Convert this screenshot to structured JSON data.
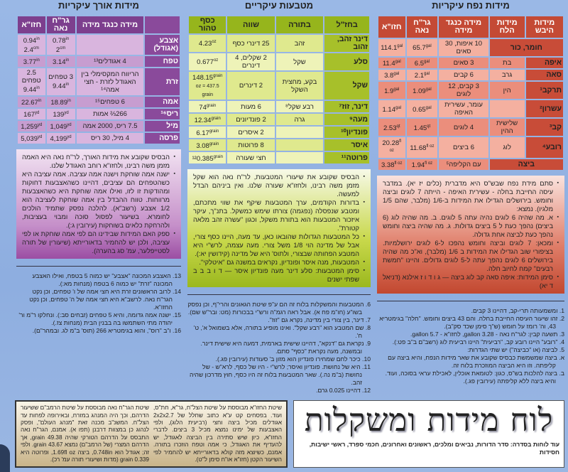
{
  "volume": {
    "title": "מידות נפח עיקריות",
    "headers": [
      "מידות היבש",
      "מידות הלח",
      "מידה כנגד מידה",
      "גר\"ח נאה",
      "חזו\"א"
    ],
    "rows": [
      [
        {
          "v": "חומר, כור",
          "span": 2
        },
        {
          "v": "10 איפות, 30 סאים"
        },
        {
          "v": "65.7",
          "u": "gal"
        },
        {
          "v": "114.1",
          "u": "gal"
        }
      ],
      [
        {
          "v": "איפה"
        },
        {
          "v": "בת"
        },
        {
          "v": "3 סאים"
        },
        {
          "v": "6.5",
          "u": "gal"
        },
        {
          "v": "11.4",
          "u": "gal"
        }
      ],
      [
        {
          "v": "סאה"
        },
        {
          "v": "גרב"
        },
        {
          "v": "6 קבים"
        },
        {
          "v": "2.1",
          "u": "gal"
        },
        {
          "v": "3.8",
          "u": "gal"
        }
      ],
      [
        {
          "v": "תרקב¹"
        },
        {
          "v": "הין"
        },
        {
          "v": "3 קבים, 12 לוגים"
        },
        {
          "v": "1.09",
          "u": "gal"
        },
        {
          "v": "1.9",
          "u": "gal"
        }
      ],
      [
        {
          "v": "עשרון²"
        },
        {
          "v": ""
        },
        {
          "v": "עומר, עשירית האיפה"
        },
        {
          "v": "0.65",
          "u": "gal"
        },
        {
          "v": "1.14",
          "u": "gal"
        }
      ],
      [
        {
          "v": "קב³"
        },
        {
          "v": "שלישית ההין"
        },
        {
          "v": "4 לוגים"
        },
        {
          "v": "1.45",
          "u": "qt"
        },
        {
          "v": "2.53",
          "u": "qt"
        }
      ],
      [
        {
          "v": "רובע⁴"
        },
        {
          "v": "לוג"
        },
        {
          "v": "6 ביצים"
        },
        {
          "v": "11.68",
          "u": "fl oz"
        },
        {
          "v": "20.28",
          "u": "fl oz"
        }
      ],
      [
        {
          "v": "ביצה",
          "span": 2
        },
        {
          "v": "עם הקליפה⁵"
        },
        {
          "v": "1.94",
          "u": "fl oz"
        },
        {
          "v": "3.38",
          "u": "fl oz"
        }
      ]
    ],
    "notes": [
      "סתם מידת נפח שבש\"ס היא מדברית (כלים יז יא). במדבר עיסה החייבת בחלה - עשירית האיפה - הייתה 7 לוגים וביצה וחומש. בירושלים הגדילו את המידות ב-1/6 (מלבר, שהם 1/5 מלגיו). נמצא:",
      "א. מה שהיה 6 לוגים נהיה עתה 5 לוגים. ב. מה שהיה לוג (6 ביצים) נהפך כעת ל 5 ביצים גדולות. ג. מה שהיה ביצה וחומש נהפך כעת לביצה אחת גדולה.",
      "ומכאן: 7 לוגים וביצה וחומש נהפכו ל-6 לוגים ירושלמיות. בציפורי שוב הגדילו את המידות ב 1/6 (מלבר), וא\"כ מה שהיה בירושלים 6 לוגים נהפך עתה ל-5 לוגים גדולים. והיינו \"חמשת רבעים\" קמח לחיוב חלה.",
      "סימן המידות: איפה סאה קב לוג ביצה — ג ו ד ו ז  אילנא (דניאל ד יא)"
    ]
  },
  "coins": {
    "title": "מטבעות עיקריים",
    "headers": [
      "בחז\"ל",
      "בתורה",
      "שווה",
      "כסף טהור"
    ],
    "rows": [
      [
        {
          "v": "דינר זהב, זהוב"
        },
        {
          "v": "זהב"
        },
        {
          "v": "25 דינרי כסף"
        },
        {
          "v": "4.23",
          "u": "oz"
        }
      ],
      [
        {
          "v": "סלע"
        },
        {
          "v": "שקל"
        },
        {
          "v": "2 שקלים, 4 דינרים"
        },
        {
          "v": "0.677",
          "u": "oz"
        }
      ],
      [
        {
          "v": "שקל"
        },
        {
          "v": "בקע, מחצית השקל"
        },
        {
          "v": "2 דינרים"
        },
        {
          "v": "148.15",
          "u": "grain",
          "v2": "oz = 437.5 grain"
        }
      ],
      [
        {
          "v": "דינר, זוז⁷"
        },
        {
          "v": "רבע שקל⁸"
        },
        {
          "v": "6 מעות"
        },
        {
          "v": "74",
          "u": "grain"
        }
      ],
      [
        {
          "v": "מעה⁹"
        },
        {
          "v": "גרה"
        },
        {
          "v": "2 פונדיונים"
        },
        {
          "v": "12.34",
          "u": "grain"
        }
      ],
      [
        {
          "v": "פונדיון¹⁰"
        },
        {
          "v": ""
        },
        {
          "v": "2 איסרים"
        },
        {
          "v": "6.17",
          "u": "grain"
        }
      ],
      [
        {
          "v": "איסר"
        },
        {
          "v": ""
        },
        {
          "v": "8 פרוטות"
        },
        {
          "v": "3.08",
          "u": "grain"
        }
      ],
      [
        {
          "v": "פרוטה¹¹"
        },
        {
          "v": ""
        },
        {
          "v": "חצי שעורה"
        },
        {
          "v": "¹²0.385",
          "u": "grain"
        }
      ]
    ],
    "notes": [
      "הבסיס שקובע את שיעורי המטבעות, לר\"ח נאה הוא שקל מזמן משה רבינו, ולחזו\"א שעורה שלנו. ואין ביניהם הבדל למעשה.",
      "בדורות הקודמים, ערך המטבעות שיקף את שווי מתכתם, ומטבע שנפסלה (נפגמה) צורתו שימש כמשקל. בתנ\"ך, עיקר איזכור המטבעות הוא בתורת משקל, וכגון \"עשרה זהב מלאה קטורת\".",
      "כל המטבעות הגדולות שהובאו כאן, עד מעה, היינו כסף צורי, אבל של מדינה הוי 1/8 משל צורי. מעה עצמה, לרש\"י היא המטבע הפחותה שבצורי, ולתוס' היא של מדינה (קידושין יא:).",
      "המטבעות, מנה איסר ופונדיון, נקראים במשנה גם \"איטלקי\".",
      "סימן המטבעות: סלע דינר מעה פונדיון איסר — ד ו ב ב ב  שפתי ישנים"
    ]
  },
  "length": {
    "title": "מידות אורך עיקריות",
    "headers": [
      "",
      "מידה כנגד מידה",
      "גר\"ח נאה",
      "חזו\"א"
    ],
    "rows": [
      [
        {
          "v": "אצבע (אגודל)"
        },
        {
          "v": ""
        },
        {
          "v": "0.78",
          "u": "in",
          "v2": "2",
          "u2": "cm"
        },
        {
          "v": "0.94",
          "u": "in",
          "v2": "2.4",
          "u2": "cm"
        }
      ],
      [
        {
          "v": "טפח"
        },
        {
          "v": "4 אגודלים¹³"
        },
        {
          "v": "3.14",
          "u": "in"
        },
        {
          "v": "3.77",
          "u": "in"
        }
      ],
      [
        {
          "v": "זרת"
        },
        {
          "v": "הריווח המקסימלי בין האגודל לזרת - חצי אמה¹⁴"
        },
        {
          "v": "3 טפחים",
          "v2": "9.44",
          "u2": "in"
        },
        {
          "v": "2.5 טפחים",
          "v2": "9.44",
          "u2": "in"
        }
      ],
      [
        {
          "v": "אמה"
        },
        {
          "v": "6 טפחים¹⁵"
        },
        {
          "v": "18.89",
          "u": "in"
        },
        {
          "v": "22.67",
          "u": "in"
        }
      ],
      [
        {
          "v": "ריס¹⁶"
        },
        {
          "v": "266⅔ אמות"
        },
        {
          "v": "139",
          "u": "yd"
        },
        {
          "v": "167",
          "u": "yd"
        }
      ],
      [
        {
          "v": "מיל"
        },
        {
          "v": "7.5 ריס, 2000 אמה"
        },
        {
          "v": "1,049",
          "u": "yd"
        },
        {
          "v": "1,259",
          "u": "yd"
        }
      ],
      [
        {
          "v": "פרסה"
        },
        {
          "v": "4 מיל, 30 ריס"
        },
        {
          "v": "4,199",
          "u": "yd"
        },
        {
          "v": "5,039",
          "u": "yd"
        }
      ]
    ],
    "notes": [
      "הבסיס שקובע את מידות האורך, לר\"ח נאה היא האמה מזמן משה רבינו, ולחזו\"א רוחב האגודל שלנו.",
      "ישנה אמה שוחקת וישנה אמה עציבה. אמה עציבה היא כשהטפחים הם עציבים, דהיינו כשהאצבעות דחוקות ומהודקות זו לזו, ואילו אמה שוחקת היא כשהאצבעות מרווחות. טווח ההבדל בין אמה שוחקת לעציבה הוא 1/2 אצבע (רשב\"א). להלכה נפסק שתמיד הולכים לחומרא. בשיעור לפסול סוכה ומבוי בעציבות, ולהרחקת כלאים בשוחקות (עירובין ג:).",
      "ספק האם המידות שבידינו הם לפי אמה שוחקת או לפי עציבה, ולכן יש להחמיר בדאורייתא (שיעורין של תורה לסטייפלער, עמ' סג בהערה)."
    ]
  },
  "footnotes_volume": [
    "1. ומשמעותה תרי-קב, דהיינו 3 קבים.",
    "2. זהו שיעור העיסה החייבת בחלה. והם 43 ביצים וחומש. \"חלה\" בגימטריא 43, וה' רומז על חומש (ש\"ך סימן שכד סק\"ב).",
    "3. תשעה קבין: לגר\"ח נאה - gallon 3.28, לחזו\"א - gallon 5.7.",
    "4. \"רובע\" היינו רובע קב, \"רביעית\" היינו רביעית לוג (רשב\"ם ב\"ב פט:).",
    "5. לביצה (או \"כביצה\") יש שתי הגדרות:",
    "א. ביצה שמשמשת כבסיס שקובע את שאר מידות הנפח, והיא ביצה עם קליפתה. וזו היא הביצה המוזכרת בלוח זה.",
    "ב. ביצה להלכות בש\"ס, כגון: לטומאת אוכלין, לאכילת עראי בסוכה, ועוד. והיא ביצה ללא קליפתה (עירובין פג.)."
  ],
  "footnotes_coins": [
    "6. המטבעות והמשקלות בלוח זה הם ע\"פ שיטת הגאונים והרי\"ף, וכן נפסק בשו\"ע (חו\"מ פח א). אבל ראה רגמ\"ה ורש\"י בבכורות (מט: ובר\"ש שם).",
    "7. דינר, בין צורי בין מדינה, נקרא גם \"זוז\".",
    "8. שם המטבע הוא \"רבע שקל\". ואינו מופיע בתורה, אלא בשמואל א', ט' ח'.",
    "9. נקראת גם \"דנקא\", דהיינו שישית בארמית, דמעה היא שישית דינר. ובמשנה, מעה נקראת \"כסף\" סתם.",
    "10. כיכר לחם שמחירו פונדיון הוא מזון ב' סעודות (עירובין פג.).",
    "11. היא של נחושת. פונדיון ואיסר; לרש\"י - היו של כסף, לרא\"ש - של נחושת (ב\"מ נה.). שאר המטבעות בלוח זה היו כסף, חוץ מדרכון שהיה זהב.",
    "12. דהיינו 0.025 גרם."
  ],
  "footnotes_length": [
    "13. האצבע המכונה \"אצבע\" יש כמוה 5 בטפח, ואילו האצבע המכונה \"זרת\" יש כמוה 6 בטפח (מנחות מא:).",
    "14. לרוב הראשונים זרת היא חצי אמה של ו' טפחים, וכן נקט הגר\"ח נאה. לרשב\"א היא חצי אמה של ה' טפחים, וכן נקט החזו\"א.",
    "15. ישנה אמה גדומה, והיא 5 טפחים (זבחים סב:). ונחלקו ר\"מ ור' יהודה מתי השתמשו בה בבנין הבית (מנחות צז.).",
    "16. ו\"ב \"רוס\", והוא בגימטריא 266 (תוס' ב\"מ לג. ובמהר\"ם)."
  ],
  "shitot": {
    "chazon_ish": "שיטת החזו\"א מבוססת על שיטת הצל\"ח, גר\"א, חת\"ס, ועוד. בפסחים קט ע\"א כתוב שחלל של 2x2x2.7 אגודלים מכיל ביצה וחצי (רביעית הלוג), ולפי האצבעות של ימינו נמצא מכיל 3 ביצים. לדברי החזו\"א, כיון שיש סתירה בין הביצה לאגודל, יש להעדיף את האגודל, כי אמה וטפח הוזכרו בתורה. אמנם, כשיוצא מזה קולא בדאורייתא יש להחמיר לפי השיעור הקטן (חזו\"א או\"ח סימן ל\"ט).",
    "grach_naeh": "שיטת הגר\"ח נאה מבוססת על שיטת הרמב\"ם ששיעור הדרהם, וכך היה המנהג במזרח, ובאירופה לפחות עד הצל\"ח. המשנ\"ב מכנה זאת \"מנהג העולם\", ופסק לנהוג כן במצוות דרבנן (תפו א). אמנם, הגר\"ח נאה התבסס על הדרהם הטורקי שהיה 49.38 grain, אך הדרהם המצרי (של הרמב\"ם) נמצא 43.67 grain. ולפי זה; אגודל הוא 0.748in, ביצה 1.69fl oz, ופרוטה היא 0.339 grain (מדות ושיעורי תורה עמ' רכ)."
  },
  "title": {
    "main": "לוח מידות ומשקלות",
    "series": "עוד לוחות בסדרה: סדר הדורות, נביאים ומלכים, ראשונים ואחרונים, חכמי ספרד, ראשי ישיבות, חסידות"
  },
  "colors": {
    "volume": "#c84c38",
    "coins": "#96b51c",
    "length": "#7d3f8e",
    "background": "#9ab8e6"
  }
}
